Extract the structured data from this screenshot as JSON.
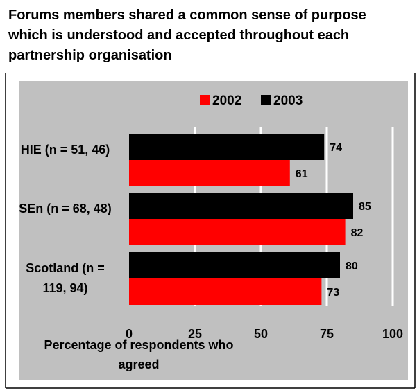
{
  "chart_data": {
    "type": "bar",
    "orientation": "horizontal",
    "title": "Forums members shared a common sense of purpose which is understood and accepted throughout each partnership organisation",
    "categories": [
      "HIE (n = 51, 46)",
      "SEn (n = 68, 48)",
      "Scotland (n = 119, 94)"
    ],
    "series": [
      {
        "name": "2002",
        "color": "#ff0000",
        "values": [
          61,
          82,
          73
        ]
      },
      {
        "name": "2003",
        "color": "#000000",
        "values": [
          74,
          85,
          80
        ]
      }
    ],
    "x_label": "Percentage of respondents who agreed",
    "xlim": [
      0,
      100
    ],
    "xticks": [
      0,
      25,
      50,
      75,
      100
    ],
    "grid": true,
    "legend": "top"
  }
}
